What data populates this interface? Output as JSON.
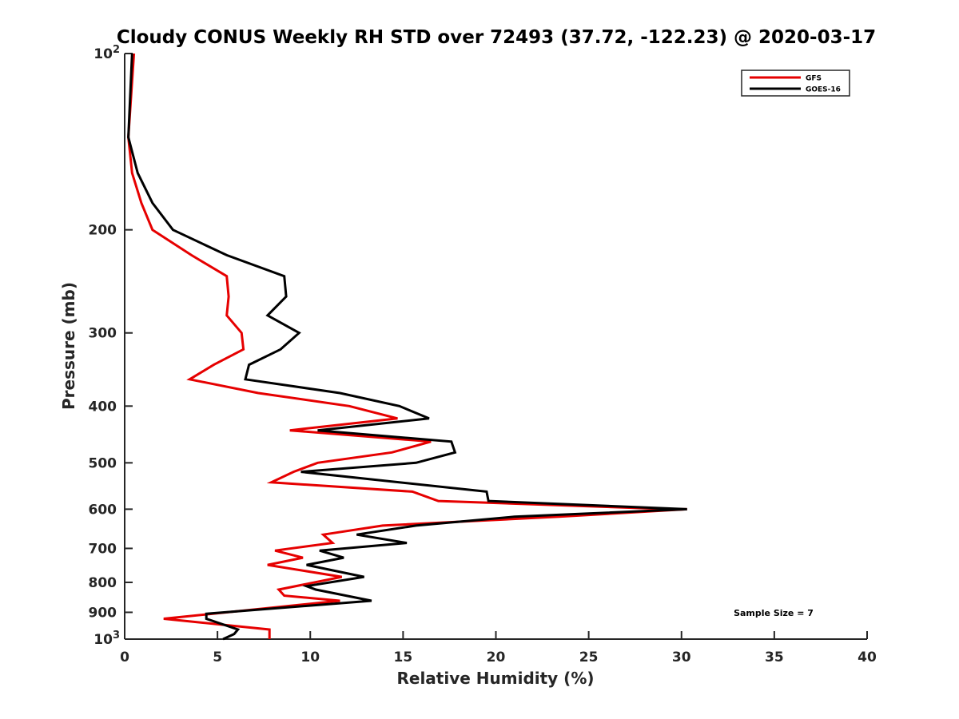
{
  "chart_data": {
    "type": "line",
    "title": "Cloudy CONUS Weekly RH STD over 72493 (37.72, -122.23) @ 2020-03-17",
    "xlabel": "Relative Humidity (%)",
    "ylabel": "Pressure (mb)",
    "xlim": [
      0,
      40
    ],
    "ylim": [
      100,
      1000
    ],
    "yscale": "log",
    "yreversed": false,
    "grid": false,
    "legend_position": "top-right",
    "x_ticks": [
      "0",
      "5",
      "10",
      "15",
      "20",
      "25",
      "30",
      "35",
      "40"
    ],
    "x_tick_values": [
      0,
      5,
      10,
      15,
      20,
      25,
      30,
      35,
      40
    ],
    "y_ticks": [
      {
        "value": 100,
        "base": "10",
        "exp": "2",
        "label": ""
      },
      {
        "value": 200,
        "label": "200"
      },
      {
        "value": 300,
        "label": "300"
      },
      {
        "value": 400,
        "label": "400"
      },
      {
        "value": 500,
        "label": "500"
      },
      {
        "value": 600,
        "label": "600"
      },
      {
        "value": 700,
        "label": "700"
      },
      {
        "value": 800,
        "label": "800"
      },
      {
        "value": 900,
        "label": "900"
      },
      {
        "value": 1000,
        "base": "10",
        "exp": "3",
        "label": ""
      }
    ],
    "annotation": "Sample Size = 7",
    "series": [
      {
        "name": "GFS",
        "color": "#e60000",
        "points": [
          [
            0.5,
            100
          ],
          [
            0.2,
            139
          ],
          [
            0.4,
            160
          ],
          [
            0.9,
            180
          ],
          [
            1.5,
            200
          ],
          [
            3.6,
            221
          ],
          [
            5.5,
            240
          ],
          [
            5.6,
            260
          ],
          [
            5.5,
            280
          ],
          [
            6.3,
            300
          ],
          [
            6.4,
            320
          ],
          [
            4.8,
            340
          ],
          [
            3.5,
            360
          ],
          [
            7.2,
            380
          ],
          [
            12.1,
            400
          ],
          [
            14.7,
            420
          ],
          [
            8.9,
            440
          ],
          [
            16.5,
            460
          ],
          [
            14.4,
            480
          ],
          [
            10.4,
            500
          ],
          [
            9.1,
            518
          ],
          [
            7.9,
            540
          ],
          [
            15.5,
            560
          ],
          [
            16.9,
            581
          ],
          [
            29.5,
            600
          ],
          [
            30.3,
            600
          ],
          [
            23.4,
            618
          ],
          [
            13.9,
            640
          ],
          [
            10.7,
            663
          ],
          [
            11.2,
            685
          ],
          [
            8.1,
            706
          ],
          [
            9.6,
            726
          ],
          [
            7.7,
            747
          ],
          [
            11.7,
            783
          ],
          [
            8.3,
            823
          ],
          [
            8.6,
            843
          ],
          [
            11.6,
            860
          ],
          [
            2.1,
            923
          ],
          [
            7.8,
            963
          ],
          [
            7.8,
            1000
          ]
        ]
      },
      {
        "name": "GOES-16",
        "color": "#000000",
        "points": [
          [
            0.4,
            100
          ],
          [
            0.2,
            139
          ],
          [
            0.7,
            160
          ],
          [
            1.5,
            180
          ],
          [
            2.6,
            200
          ],
          [
            5.5,
            221
          ],
          [
            8.6,
            240
          ],
          [
            8.7,
            260
          ],
          [
            7.7,
            280
          ],
          [
            9.4,
            300
          ],
          [
            8.4,
            320
          ],
          [
            6.7,
            340
          ],
          [
            6.5,
            360
          ],
          [
            11.6,
            380
          ],
          [
            14.8,
            400
          ],
          [
            16.4,
            420
          ],
          [
            10.4,
            440
          ],
          [
            17.6,
            460
          ],
          [
            17.8,
            480
          ],
          [
            15.7,
            500
          ],
          [
            9.5,
            518
          ],
          [
            19.5,
            560
          ],
          [
            19.6,
            581
          ],
          [
            30.3,
            600
          ],
          [
            21.0,
            618
          ],
          [
            15.7,
            640
          ],
          [
            12.5,
            663
          ],
          [
            15.2,
            685
          ],
          [
            10.5,
            706
          ],
          [
            11.8,
            726
          ],
          [
            9.8,
            747
          ],
          [
            12.9,
            783
          ],
          [
            9.8,
            812
          ],
          [
            10.3,
            823
          ],
          [
            13.3,
            860
          ],
          [
            4.4,
            905
          ],
          [
            4.4,
            923
          ],
          [
            6.1,
            963
          ],
          [
            5.9,
            980
          ],
          [
            5.3,
            1000
          ]
        ]
      }
    ]
  }
}
